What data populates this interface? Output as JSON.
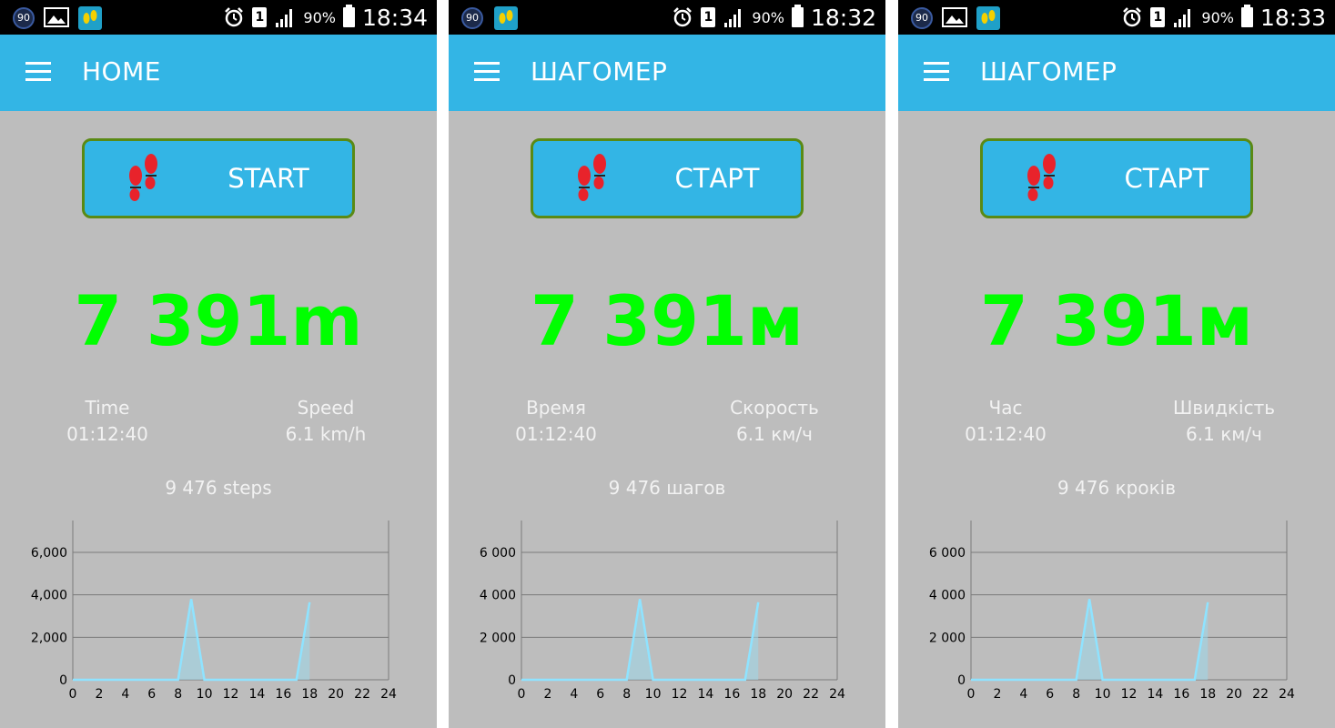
{
  "colors": {
    "statusbar": "#000000",
    "appbar": "#33b5e5",
    "background": "#bdbdbd",
    "button_border": "#5a8a14",
    "distance": "#00ff00",
    "feet": "#e8232b",
    "series_line": "#8fe3ff",
    "series_fill": "#9fd6e6"
  },
  "screens": [
    {
      "statusbar": {
        "badge": "90",
        "icons": [
          "badge-90-icon",
          "gallery-icon",
          "app-feet-icon"
        ],
        "sim": "1",
        "battery": "90%",
        "time": "18:34"
      },
      "appbar_title": "HOME",
      "start_label": "START",
      "distance": "7 391m",
      "time_label": "Time",
      "time_value": "01:12:40",
      "speed_label": "Speed",
      "speed_value": "6.1 km/h",
      "steps": "9 476 steps",
      "chart_data": {
        "type": "area",
        "x_ticks": [
          "0",
          "2",
          "4",
          "6",
          "8",
          "10",
          "12",
          "14",
          "16",
          "18",
          "20",
          "22",
          "24"
        ],
        "y_ticks": [
          "0",
          "2,000",
          "4,000",
          "6,000"
        ],
        "xlim": [
          0,
          24
        ],
        "ylim": [
          0,
          7500
        ],
        "x": [
          0,
          8,
          9,
          10,
          17,
          18
        ],
        "y": [
          0,
          0,
          3800,
          0,
          0,
          3650
        ],
        "grid": true
      }
    },
    {
      "statusbar": {
        "badge": "90",
        "icons": [
          "badge-90-icon",
          "app-feet-icon"
        ],
        "sim": "1",
        "battery": "90%",
        "time": "18:32"
      },
      "appbar_title": "ШАГОМЕР",
      "start_label": "СТАРТ",
      "distance": "7 391м",
      "time_label": "Время",
      "time_value": "01:12:40",
      "speed_label": "Скорость",
      "speed_value": "6.1 км/ч",
      "steps": "9 476 шагов",
      "chart_data": {
        "type": "area",
        "x_ticks": [
          "0",
          "2",
          "4",
          "6",
          "8",
          "10",
          "12",
          "14",
          "16",
          "18",
          "20",
          "22",
          "24"
        ],
        "y_ticks": [
          "0",
          "2 000",
          "4 000",
          "6 000"
        ],
        "xlim": [
          0,
          24
        ],
        "ylim": [
          0,
          7500
        ],
        "x": [
          0,
          8,
          9,
          10,
          17,
          18
        ],
        "y": [
          0,
          0,
          3800,
          0,
          0,
          3650
        ],
        "grid": true
      }
    },
    {
      "statusbar": {
        "badge": "90",
        "icons": [
          "badge-90-icon",
          "gallery-icon",
          "app-feet-icon"
        ],
        "sim": "1",
        "battery": "90%",
        "time": "18:33"
      },
      "appbar_title": "ШАГОМЕР",
      "start_label": "СТАРТ",
      "distance": "7 391м",
      "time_label": "Час",
      "time_value": "01:12:40",
      "speed_label": "Швидкість",
      "speed_value": "6.1 км/ч",
      "steps": "9 476 кроків",
      "chart_data": {
        "type": "area",
        "x_ticks": [
          "0",
          "2",
          "4",
          "6",
          "8",
          "10",
          "12",
          "14",
          "16",
          "18",
          "20",
          "22",
          "24"
        ],
        "y_ticks": [
          "0",
          "2 000",
          "4 000",
          "6 000"
        ],
        "xlim": [
          0,
          24
        ],
        "ylim": [
          0,
          7500
        ],
        "x": [
          0,
          8,
          9,
          10,
          17,
          18
        ],
        "y": [
          0,
          0,
          3800,
          0,
          0,
          3650
        ],
        "grid": true
      }
    }
  ]
}
